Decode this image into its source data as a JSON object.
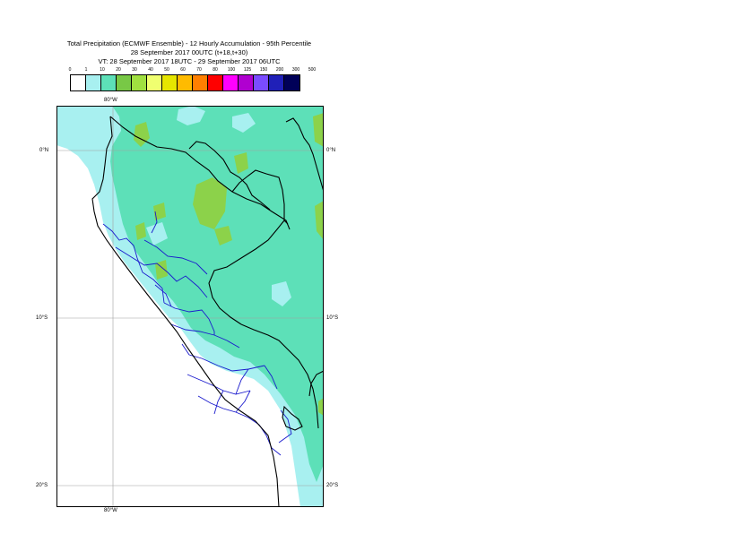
{
  "header": {
    "line1": "Total Precipitation (ECMWF Ensemble) - 12 Hourly Accumulation - 95th Percentile",
    "line2": "28 September 2017 00UTC (t+18,t+30)",
    "line3": "VT: 28 September 2017 18UTC - 29 September 2017 06UTC"
  },
  "legend": {
    "ticks": [
      "0",
      "1",
      "10",
      "20",
      "30",
      "40",
      "50",
      "60",
      "70",
      "80",
      "100",
      "125",
      "150",
      "200",
      "300",
      "500"
    ],
    "colors": [
      "#ffffff",
      "#a8f0f0",
      "#5de0b8",
      "#78c846",
      "#a0e040",
      "#f0ff70",
      "#e6e600",
      "#ffbb00",
      "#ff7f00",
      "#ff0000",
      "#ff00ff",
      "#b000d0",
      "#7a4cff",
      "#2020b8",
      "#000058"
    ]
  },
  "axes": {
    "lon_top": "80°W",
    "lon_bottom": "80°W",
    "lat_0_left": "0°N",
    "lat_0_right": "0°N",
    "lat_10_left": "10°S",
    "lat_10_right": "10°S",
    "lat_20_left": "20°S",
    "lat_20_right": "20°S"
  },
  "colors": {
    "ocean": "#ffffff",
    "light_precip": "#a8f0f0",
    "moderate_precip": "#5de0b8",
    "heavy_precip": "#78c846",
    "coastline": "#000000",
    "admin_borders": "#1a1acd",
    "gridlines": "#a0a0a0"
  }
}
